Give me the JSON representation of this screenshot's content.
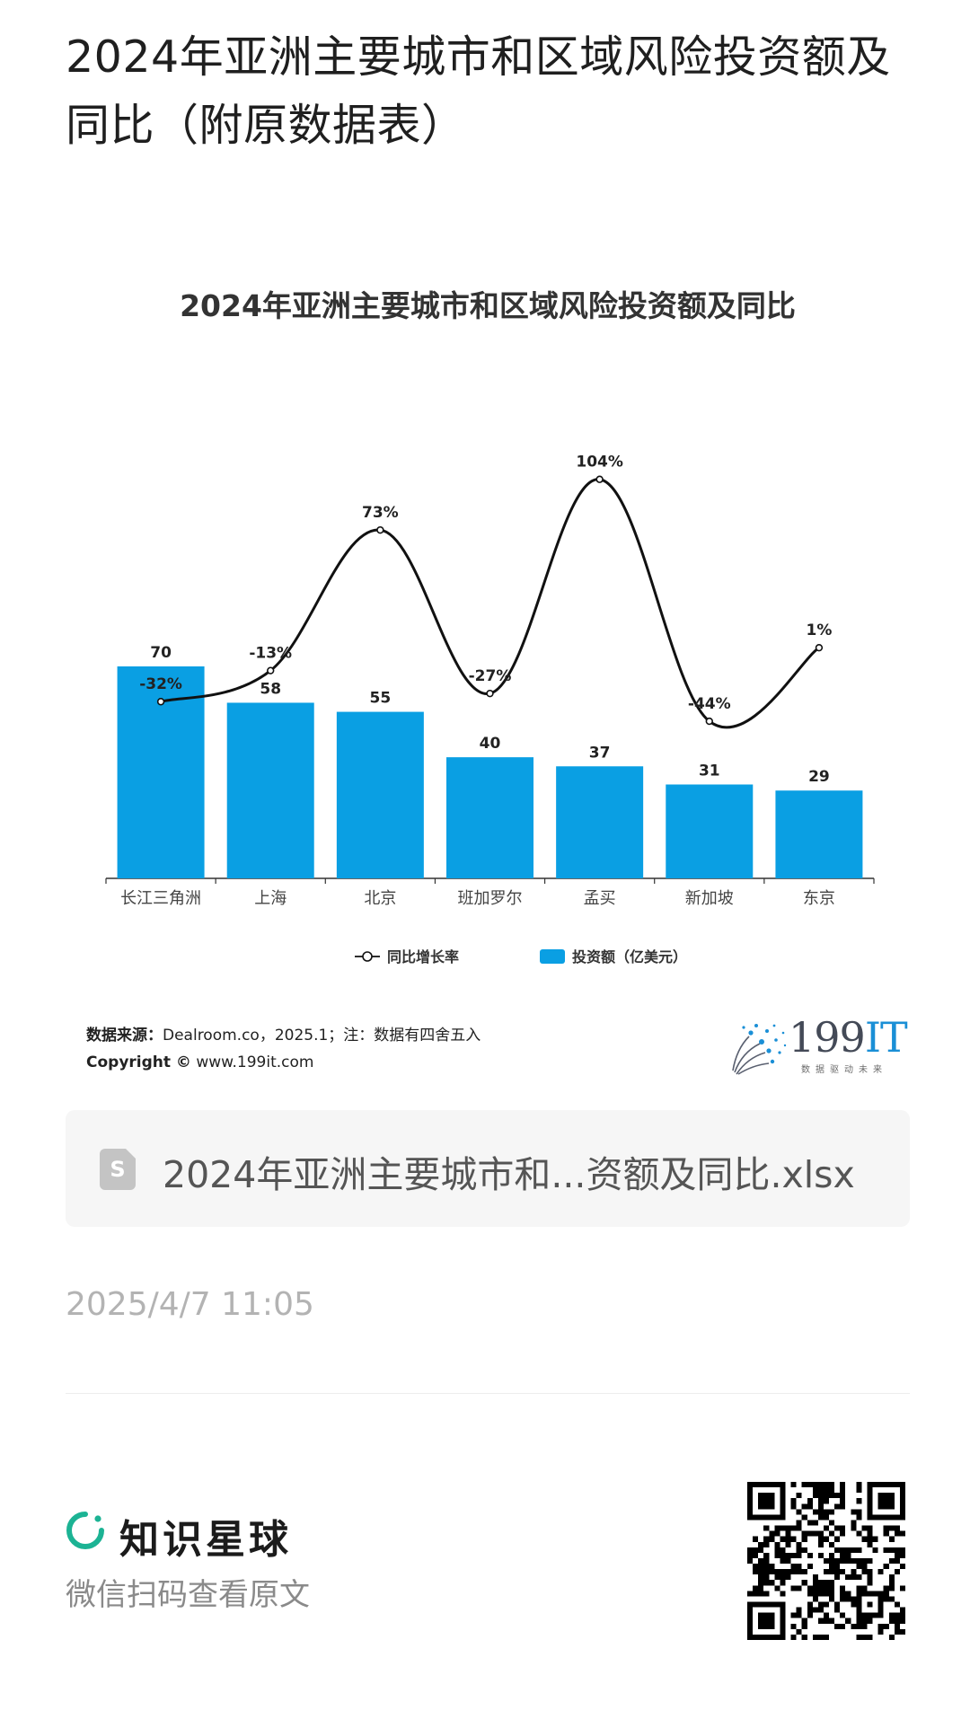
{
  "post": {
    "title": "2024年亚洲主要城市和区域风险投资额及同比（附原数据表）",
    "timestamp": "2025/4/7 11:05"
  },
  "chart_data": {
    "type": "bar+line",
    "title": "2024年亚洲主要城市和区域风险投资额及同比",
    "categories": [
      "长江三角洲",
      "上海",
      "北京",
      "班加罗尔",
      "孟买",
      "新加坡",
      "东京"
    ],
    "series": [
      {
        "name": "投资额（亿美元）",
        "kind": "bar",
        "color": "#0a9fe3",
        "values": [
          70,
          58,
          55,
          40,
          37,
          31,
          29
        ],
        "labels": [
          "70",
          "58",
          "55",
          "40",
          "37",
          "31",
          "29"
        ]
      },
      {
        "name": "同比增长率",
        "kind": "line",
        "color": "#111111",
        "values": [
          -32,
          -13,
          73,
          -27,
          104,
          -44,
          1
        ],
        "labels": [
          "-32%",
          "-13%",
          "73%",
          "-27%",
          "104%",
          "-44%",
          "1%"
        ]
      }
    ],
    "legend_placement": "bottom-center",
    "grid": false
  },
  "source": {
    "label": "数据来源：",
    "text": "Dealroom.co，2025.1；注：数据有四舍五入",
    "copyright_label": "Copyright ©",
    "copyright_site": "www.199it.com"
  },
  "brand": {
    "number": "199",
    "it": "IT",
    "slogan": "数据驱动未来"
  },
  "attachment": {
    "icon_letter": "S",
    "filename": "2024年亚洲主要城市和...资额及同比.xlsx"
  },
  "footer": {
    "app_name": "知识星球",
    "hint": "微信扫码查看原文",
    "accent_color": "#1cb394"
  }
}
